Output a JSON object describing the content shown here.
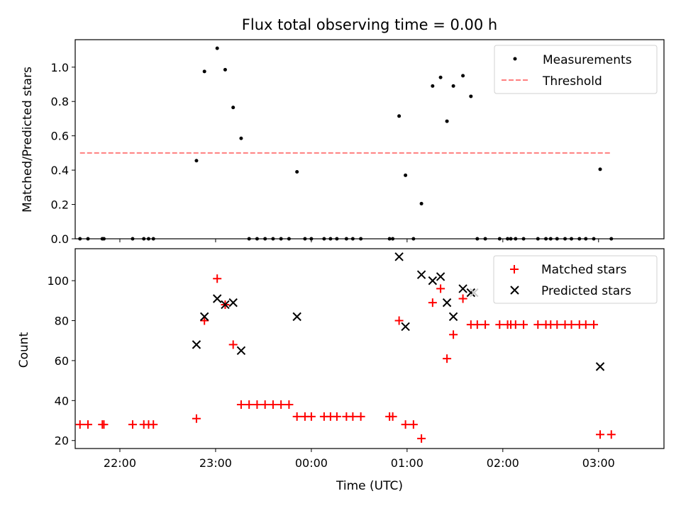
{
  "chart_data": {
    "title": "Flux total observing time = 0.00 h",
    "xlabel": "Time (UTC)",
    "x_ticks": [
      "22:00",
      "23:00",
      "00:00",
      "01:00",
      "02:00",
      "03:00"
    ],
    "x_range": [
      "21:32",
      "03:41"
    ],
    "colors": {
      "measurements": "#000000",
      "threshold": "#ff7f7f",
      "matched": "#ff0000",
      "predicted": "#000000",
      "predicted_faded": "#c8c8c8"
    },
    "panels": [
      {
        "type": "scatter",
        "ylabel": "Matched/Predicted stars",
        "ylim": [
          0,
          1.16
        ],
        "y_ticks": [
          "0.0",
          "0.2",
          "0.4",
          "0.6",
          "0.8",
          "1.0"
        ],
        "legend_position": "upper right",
        "series": [
          {
            "name": "Measurements",
            "marker": "dot",
            "points": [
              [
                "21:35",
                0
              ],
              [
                "21:40",
                0
              ],
              [
                "21:49",
                0
              ],
              [
                "21:50",
                0
              ],
              [
                "22:08",
                0
              ],
              [
                "22:15",
                0
              ],
              [
                "22:18",
                0
              ],
              [
                "22:21",
                0
              ],
              [
                "22:48",
                0.455
              ],
              [
                "22:53",
                0.975
              ],
              [
                "23:01",
                1.11
              ],
              [
                "23:06",
                0.985
              ],
              [
                "23:11",
                0.765
              ],
              [
                "23:16",
                0.585
              ],
              [
                "23:21",
                0
              ],
              [
                "23:26",
                0
              ],
              [
                "23:31",
                0
              ],
              [
                "23:36",
                0
              ],
              [
                "23:41",
                0
              ],
              [
                "23:46",
                0
              ],
              [
                "23:51",
                0.39
              ],
              [
                "23:56",
                0
              ],
              [
                "00:00",
                0
              ],
              [
                "00:08",
                0
              ],
              [
                "00:12",
                0
              ],
              [
                "00:16",
                0
              ],
              [
                "00:22",
                0
              ],
              [
                "00:26",
                0
              ],
              [
                "00:31",
                0
              ],
              [
                "00:49",
                0
              ],
              [
                "00:51",
                0
              ],
              [
                "00:55",
                0.715
              ],
              [
                "00:59",
                0.37
              ],
              [
                "01:04",
                0
              ],
              [
                "01:09",
                0.205
              ],
              [
                "01:16",
                0.89
              ],
              [
                "01:21",
                0.94
              ],
              [
                "01:25",
                0.685
              ],
              [
                "01:29",
                0.89
              ],
              [
                "01:35",
                0.95
              ],
              [
                "01:40",
                0.83
              ],
              [
                "01:44",
                0
              ],
              [
                "01:49",
                0
              ],
              [
                "01:58",
                0
              ],
              [
                "02:03",
                0
              ],
              [
                "02:05",
                0
              ],
              [
                "02:08",
                0
              ],
              [
                "02:13",
                0
              ],
              [
                "02:22",
                0
              ],
              [
                "02:27",
                0
              ],
              [
                "02:30",
                0
              ],
              [
                "02:34",
                0
              ],
              [
                "02:39",
                0
              ],
              [
                "02:43",
                0
              ],
              [
                "02:48",
                0
              ],
              [
                "02:52",
                0
              ],
              [
                "02:57",
                0
              ],
              [
                "03:01",
                0.405
              ],
              [
                "03:08",
                0
              ]
            ]
          },
          {
            "name": "Threshold",
            "style": "dashed",
            "y": 0.5,
            "x_from": "21:35",
            "x_to": "03:08"
          }
        ]
      },
      {
        "type": "scatter",
        "ylabel": "Count",
        "ylim": [
          16,
          116
        ],
        "y_ticks": [
          "20",
          "40",
          "60",
          "80",
          "100"
        ],
        "legend_position": "upper right",
        "series": [
          {
            "name": "Matched stars",
            "marker": "plus",
            "points": [
              [
                "21:35",
                28
              ],
              [
                "21:40",
                28
              ],
              [
                "21:49",
                28
              ],
              [
                "21:50",
                28
              ],
              [
                "22:08",
                28
              ],
              [
                "22:15",
                28
              ],
              [
                "22:18",
                28
              ],
              [
                "22:21",
                28
              ],
              [
                "22:48",
                31
              ],
              [
                "22:53",
                80
              ],
              [
                "23:01",
                101
              ],
              [
                "23:06",
                88
              ],
              [
                "23:11",
                68
              ],
              [
                "23:16",
                38
              ],
              [
                "23:21",
                38
              ],
              [
                "23:26",
                38
              ],
              [
                "23:31",
                38
              ],
              [
                "23:36",
                38
              ],
              [
                "23:41",
                38
              ],
              [
                "23:46",
                38
              ],
              [
                "23:51",
                32
              ],
              [
                "23:56",
                32
              ],
              [
                "00:00",
                32
              ],
              [
                "00:08",
                32
              ],
              [
                "00:12",
                32
              ],
              [
                "00:16",
                32
              ],
              [
                "00:22",
                32
              ],
              [
                "00:26",
                32
              ],
              [
                "00:31",
                32
              ],
              [
                "00:49",
                32
              ],
              [
                "00:51",
                32
              ],
              [
                "00:55",
                80
              ],
              [
                "00:59",
                28
              ],
              [
                "01:04",
                28
              ],
              [
                "01:09",
                21
              ],
              [
                "01:16",
                89
              ],
              [
                "01:21",
                96
              ],
              [
                "01:25",
                61
              ],
              [
                "01:29",
                73
              ],
              [
                "01:35",
                91
              ],
              [
                "01:40",
                78
              ],
              [
                "01:44",
                78
              ],
              [
                "01:49",
                78
              ],
              [
                "01:58",
                78
              ],
              [
                "02:03",
                78
              ],
              [
                "02:05",
                78
              ],
              [
                "02:08",
                78
              ],
              [
                "02:13",
                78
              ],
              [
                "02:22",
                78
              ],
              [
                "02:27",
                78
              ],
              [
                "02:30",
                78
              ],
              [
                "02:34",
                78
              ],
              [
                "02:39",
                78
              ],
              [
                "02:43",
                78
              ],
              [
                "02:48",
                78
              ],
              [
                "02:52",
                78
              ],
              [
                "02:57",
                78
              ],
              [
                "03:01",
                23
              ],
              [
                "03:08",
                23
              ]
            ]
          },
          {
            "name": "Predicted stars",
            "marker": "x",
            "points": [
              [
                "22:48",
                68
              ],
              [
                "22:53",
                82
              ],
              [
                "23:01",
                91
              ],
              [
                "23:06",
                88
              ],
              [
                "23:11",
                89
              ],
              [
                "23:16",
                65
              ],
              [
                "23:51",
                82
              ],
              [
                "00:55",
                112
              ],
              [
                "00:59",
                77
              ],
              [
                "01:09",
                103
              ],
              [
                "01:16",
                100
              ],
              [
                "01:21",
                102
              ],
              [
                "01:25",
                89
              ],
              [
                "01:29",
                82
              ],
              [
                "01:35",
                96
              ],
              [
                "01:40",
                94
              ],
              [
                "03:01",
                57
              ]
            ],
            "faded_points": [
              [
                "01:42",
                94
              ]
            ]
          }
        ]
      }
    ]
  }
}
